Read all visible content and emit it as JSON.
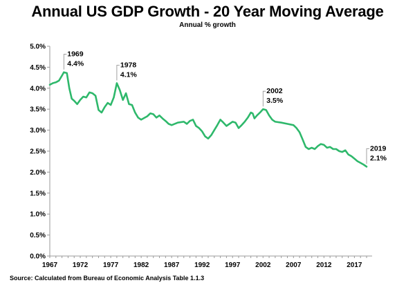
{
  "chart_data": {
    "type": "line",
    "title": "Annual US GDP Growth - 20 Year Moving Average",
    "subtitle": "Annual % growth",
    "xlabel": "",
    "ylabel": "",
    "xlim": [
      1967,
      2019
    ],
    "ylim": [
      0,
      5
    ],
    "x_ticks": [
      "1967",
      "1972",
      "1977",
      "1982",
      "1987",
      "1992",
      "1997",
      "2002",
      "2007",
      "2012",
      "2017"
    ],
    "y_ticks": [
      "0.0%",
      "0.5%",
      "1.0%",
      "1.5%",
      "2.0%",
      "2.5%",
      "3.0%",
      "3.5%",
      "4.0%",
      "4.5%",
      "5.0%"
    ],
    "grid": false,
    "legend": "none",
    "line_color": "#2eb86b",
    "series": [
      {
        "points": [
          [
            1967.0,
            4.08
          ],
          [
            1967.5,
            4.12
          ],
          [
            1968.0,
            4.14
          ],
          [
            1968.5,
            4.18
          ],
          [
            1969.0,
            4.3
          ],
          [
            1969.3,
            4.38
          ],
          [
            1969.8,
            4.36
          ],
          [
            1970.2,
            4.0
          ],
          [
            1970.6,
            3.75
          ],
          [
            1971.0,
            3.7
          ],
          [
            1971.5,
            3.62
          ],
          [
            1972.0,
            3.72
          ],
          [
            1972.5,
            3.8
          ],
          [
            1973.0,
            3.78
          ],
          [
            1973.5,
            3.9
          ],
          [
            1974.0,
            3.88
          ],
          [
            1974.5,
            3.82
          ],
          [
            1975.0,
            3.48
          ],
          [
            1975.5,
            3.42
          ],
          [
            1976.0,
            3.55
          ],
          [
            1976.5,
            3.65
          ],
          [
            1977.0,
            3.6
          ],
          [
            1977.5,
            3.78
          ],
          [
            1978.0,
            4.12
          ],
          [
            1978.5,
            3.95
          ],
          [
            1979.0,
            3.72
          ],
          [
            1979.5,
            3.88
          ],
          [
            1980.0,
            3.62
          ],
          [
            1980.5,
            3.6
          ],
          [
            1981.0,
            3.42
          ],
          [
            1981.5,
            3.3
          ],
          [
            1982.0,
            3.25
          ],
          [
            1983.0,
            3.33
          ],
          [
            1983.5,
            3.4
          ],
          [
            1984.0,
            3.38
          ],
          [
            1984.5,
            3.3
          ],
          [
            1985.0,
            3.35
          ],
          [
            1985.5,
            3.28
          ],
          [
            1986.0,
            3.22
          ],
          [
            1986.5,
            3.15
          ],
          [
            1987.0,
            3.12
          ],
          [
            1988.0,
            3.18
          ],
          [
            1989.0,
            3.2
          ],
          [
            1989.5,
            3.15
          ],
          [
            1990.0,
            3.22
          ],
          [
            1990.5,
            3.25
          ],
          [
            1991.0,
            3.1
          ],
          [
            1991.5,
            3.05
          ],
          [
            1992.0,
            2.97
          ],
          [
            1992.5,
            2.85
          ],
          [
            1993.0,
            2.8
          ],
          [
            1993.5,
            2.88
          ],
          [
            1994.0,
            3.0
          ],
          [
            1994.5,
            3.12
          ],
          [
            1995.0,
            3.25
          ],
          [
            1995.5,
            3.18
          ],
          [
            1996.0,
            3.1
          ],
          [
            1996.5,
            3.15
          ],
          [
            1997.0,
            3.2
          ],
          [
            1997.5,
            3.18
          ],
          [
            1998.0,
            3.05
          ],
          [
            1998.5,
            3.12
          ],
          [
            1999.0,
            3.2
          ],
          [
            1999.5,
            3.3
          ],
          [
            2000.0,
            3.42
          ],
          [
            2000.3,
            3.4
          ],
          [
            2000.6,
            3.28
          ],
          [
            2001.0,
            3.35
          ],
          [
            2001.5,
            3.42
          ],
          [
            2002.0,
            3.5
          ],
          [
            2002.5,
            3.48
          ],
          [
            2003.0,
            3.35
          ],
          [
            2003.5,
            3.25
          ],
          [
            2004.0,
            3.2
          ],
          [
            2005.0,
            3.18
          ],
          [
            2006.0,
            3.15
          ],
          [
            2007.0,
            3.12
          ],
          [
            2007.5,
            3.05
          ],
          [
            2008.0,
            2.95
          ],
          [
            2008.5,
            2.78
          ],
          [
            2009.0,
            2.6
          ],
          [
            2009.5,
            2.55
          ],
          [
            2010.0,
            2.58
          ],
          [
            2010.5,
            2.55
          ],
          [
            2011.0,
            2.62
          ],
          [
            2011.5,
            2.67
          ],
          [
            2012.0,
            2.65
          ],
          [
            2012.5,
            2.58
          ],
          [
            2013.0,
            2.6
          ],
          [
            2013.5,
            2.55
          ],
          [
            2014.0,
            2.55
          ],
          [
            2014.5,
            2.5
          ],
          [
            2015.0,
            2.48
          ],
          [
            2015.5,
            2.52
          ],
          [
            2016.0,
            2.42
          ],
          [
            2016.5,
            2.38
          ],
          [
            2017.0,
            2.32
          ],
          [
            2017.5,
            2.26
          ],
          [
            2018.0,
            2.22
          ],
          [
            2018.5,
            2.18
          ],
          [
            2019.0,
            2.13
          ]
        ]
      }
    ],
    "annotations": [
      {
        "year": "1969",
        "value": "4.4%",
        "x": 1969.3,
        "y": 4.38
      },
      {
        "year": "1978",
        "value": "4.1%",
        "x": 1978.0,
        "y": 4.12
      },
      {
        "year": "2002",
        "value": "3.5%",
        "x": 2002.0,
        "y": 3.5
      },
      {
        "year": "2019",
        "value": "2.1%",
        "x": 2019.0,
        "y": 2.13
      }
    ],
    "source": "Source: Calculated  from Bureau of Economic Analysis Table  1.1.3"
  }
}
